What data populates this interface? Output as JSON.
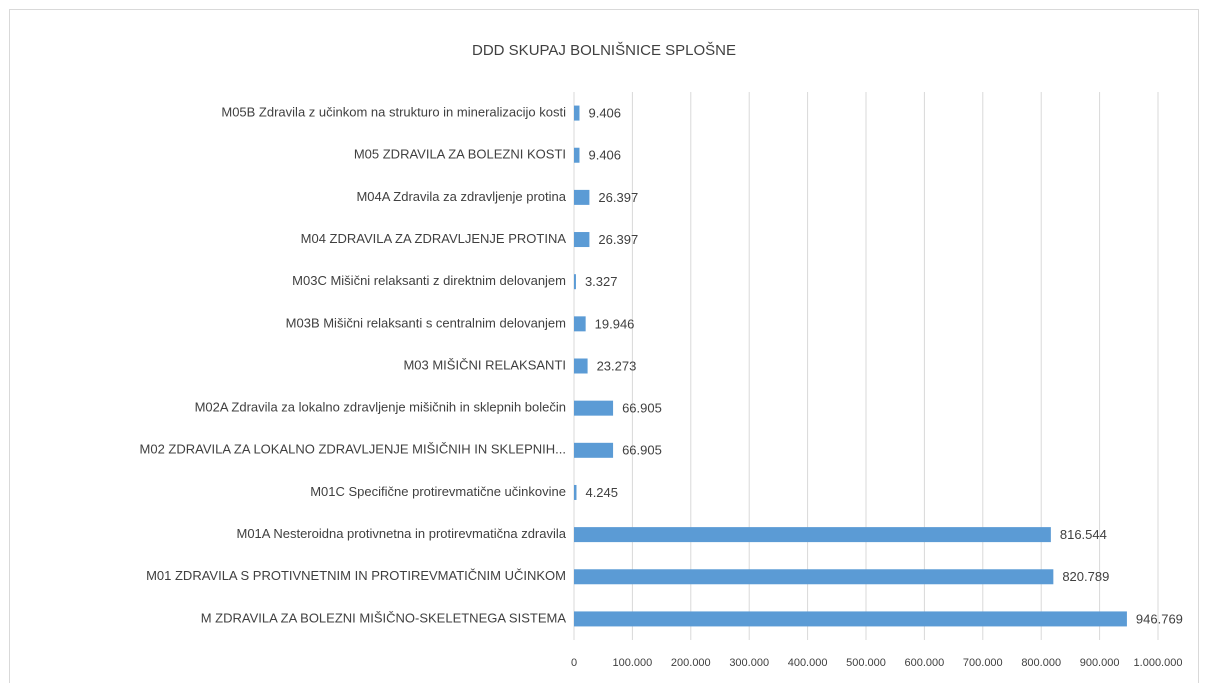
{
  "chart_data": {
    "type": "hbar",
    "title": "DDD SKUPAJ BOLNIŠNICE SPLOŠNE",
    "categories": [
      "M05B Zdravila z učinkom na strukturo in mineralizacijo kosti",
      "M05 ZDRAVILA ZA BOLEZNI KOSTI",
      "M04A Zdravila za zdravljenje protina",
      "M04 ZDRAVILA ZA ZDRAVLJENJE PROTINA",
      "M03C Mišični relaksanti z direktnim delovanjem",
      "M03B Mišični relaksanti s centralnim delovanjem",
      "M03 MIŠIČNI RELAKSANTI",
      "M02A Zdravila za lokalno zdravljenje mišičnih in sklepnih bolečin",
      "M02 ZDRAVILA ZA LOKALNO ZDRAVLJENJE MIŠIČNIH IN SKLEPNIH...",
      "M01C Specifične protirevmatične učinkovine",
      "M01A Nesteroidna protivnetna in protirevmatična zdravila",
      "M01 ZDRAVILA S PROTIVNETNIM IN PROTIREVMATIČNIM UČINKOM",
      "M ZDRAVILA ZA BOLEZNI MIŠIČNO-SKELETNEGA SISTEMA"
    ],
    "values": [
      9406,
      9406,
      26397,
      26397,
      3327,
      19946,
      23273,
      66905,
      66905,
      4245,
      816544,
      820789,
      946769
    ],
    "value_labels": [
      "9.406",
      "9.406",
      "26.397",
      "26.397",
      "3.327",
      "19.946",
      "23.273",
      "66.905",
      "66.905",
      "4.245",
      "816.544",
      "820.789",
      "946.769"
    ],
    "color": "#5b9bd5",
    "xlim": [
      0,
      1000000
    ],
    "xticks": [
      0,
      {
        "value": 100000,
        "label": "100.000"
      },
      {
        "value": 200000,
        "label": "200.000"
      },
      {
        "value": 300000,
        "label": "300.000"
      },
      {
        "value": 400000,
        "label": "400.000"
      },
      {
        "value": 500000,
        "label": "500.000"
      },
      {
        "value": 600000,
        "label": "600.000"
      },
      {
        "value": 700000,
        "label": "700.000"
      },
      {
        "value": 800000,
        "label": "800.000"
      },
      {
        "value": 900000,
        "label": "900.000"
      },
      {
        "value": 1000000,
        "label": "1.000.000"
      }
    ],
    "grid": true
  }
}
